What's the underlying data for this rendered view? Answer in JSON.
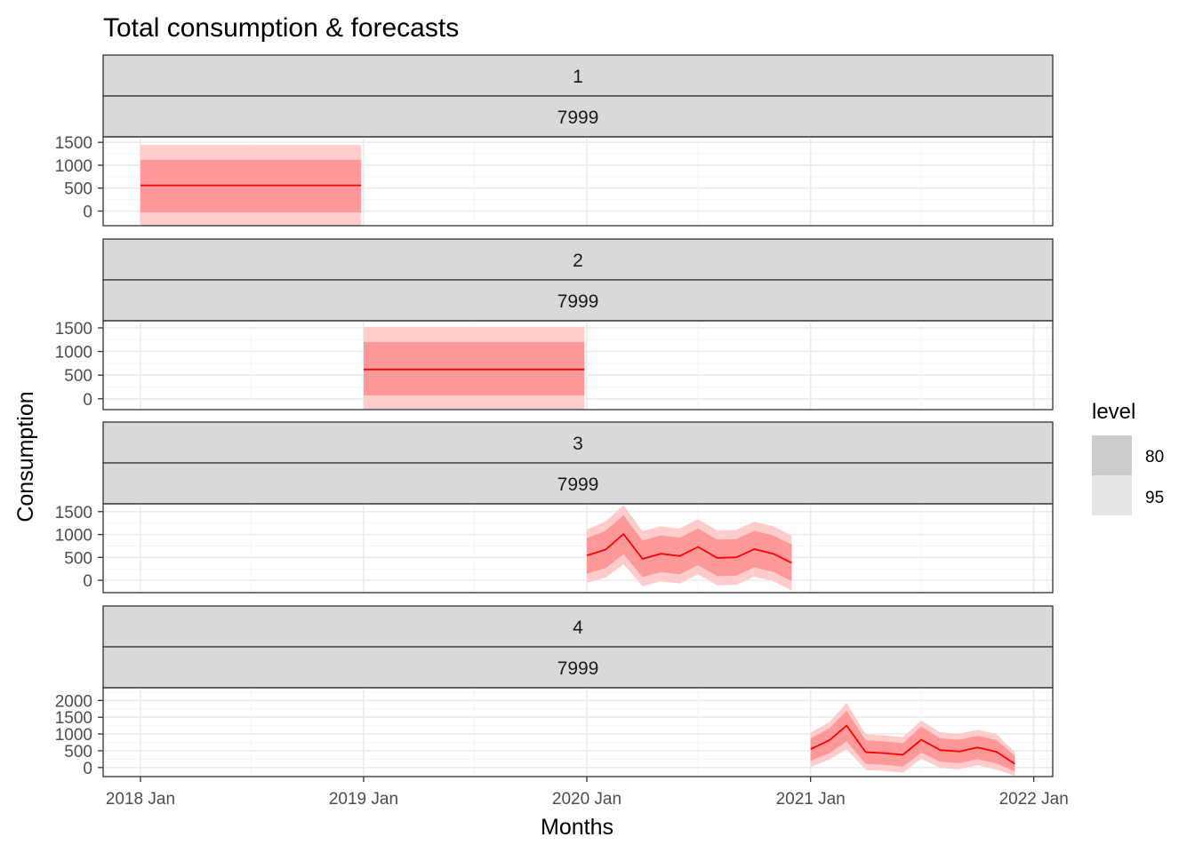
{
  "chart_data": {
    "type": "line",
    "title": "Total consumption & forecasts",
    "xlabel": "Months",
    "ylabel": "Consumption",
    "x_ticks": [
      "2018 Jan",
      "2019 Jan",
      "2020 Jan",
      "2021 Jan",
      "2022 Jan"
    ],
    "x_range": [
      "2017-11",
      "2022-02"
    ],
    "grid": true,
    "legend": {
      "title": "level",
      "position": "right",
      "entries": [
        {
          "label": "80",
          "color": "#cccccc"
        },
        {
          "label": "95",
          "color": "#e5e5e5"
        }
      ]
    },
    "colors": {
      "line": "#ff0000",
      "band80": "#ff9999",
      "band95": "#ffcccc",
      "strip_fill": "#d9d9d9",
      "grid_major": "#ebebeb",
      "grid_minor": "#f5f5f5",
      "panel_border": "#333333"
    },
    "panels": [
      {
        "strip1": "1",
        "strip2": "7999",
        "y_ticks": [
          0,
          500,
          1000,
          1500
        ],
        "ylim": [
          -320,
          1620
        ],
        "months": [
          "2018-01",
          "2018-02",
          "2018-03",
          "2018-04",
          "2018-05",
          "2018-06",
          "2018-07",
          "2018-08",
          "2018-09",
          "2018-10",
          "2018-11",
          "2018-12"
        ],
        "mean": [
          560,
          560,
          560,
          560,
          560,
          560,
          560,
          560,
          560,
          560,
          560,
          560
        ],
        "lo80": [
          -30,
          -30,
          -30,
          -30,
          -30,
          -30,
          -30,
          -30,
          -30,
          -30,
          -30,
          -30
        ],
        "hi80": [
          1120,
          1120,
          1120,
          1120,
          1120,
          1120,
          1120,
          1120,
          1120,
          1120,
          1120,
          1120
        ],
        "lo95": [
          -320,
          -320,
          -320,
          -320,
          -320,
          -320,
          -320,
          -320,
          -320,
          -320,
          -320,
          -320
        ],
        "hi95": [
          1440,
          1440,
          1440,
          1440,
          1440,
          1440,
          1440,
          1440,
          1440,
          1440,
          1440,
          1440
        ]
      },
      {
        "strip1": "2",
        "strip2": "7999",
        "y_ticks": [
          0,
          500,
          1000,
          1500
        ],
        "ylim": [
          -230,
          1650
        ],
        "months": [
          "2019-01",
          "2019-02",
          "2019-03",
          "2019-04",
          "2019-05",
          "2019-06",
          "2019-07",
          "2019-08",
          "2019-09",
          "2019-10",
          "2019-11",
          "2019-12"
        ],
        "mean": [
          620,
          620,
          620,
          620,
          620,
          620,
          620,
          620,
          620,
          620,
          620,
          620
        ],
        "lo80": [
          70,
          70,
          70,
          70,
          70,
          70,
          70,
          70,
          70,
          70,
          70,
          70
        ],
        "hi80": [
          1200,
          1200,
          1200,
          1200,
          1200,
          1200,
          1200,
          1200,
          1200,
          1200,
          1200,
          1200
        ],
        "lo95": [
          -230,
          -230,
          -230,
          -230,
          -230,
          -230,
          -230,
          -230,
          -230,
          -230,
          -230,
          -230
        ],
        "hi95": [
          1520,
          1520,
          1520,
          1520,
          1520,
          1520,
          1520,
          1520,
          1520,
          1520,
          1520,
          1520
        ]
      },
      {
        "strip1": "3",
        "strip2": "7999",
        "y_ticks": [
          0,
          500,
          1000,
          1500
        ],
        "ylim": [
          -270,
          1670
        ],
        "months": [
          "2020-01",
          "2020-02",
          "2020-03",
          "2020-04",
          "2020-05",
          "2020-06",
          "2020-07",
          "2020-08",
          "2020-09",
          "2020-10",
          "2020-11",
          "2020-12"
        ],
        "mean": [
          540,
          670,
          1010,
          470,
          580,
          530,
          730,
          490,
          500,
          680,
          580,
          380
        ],
        "lo80": [
          140,
          270,
          570,
          70,
          180,
          130,
          330,
          90,
          100,
          280,
          180,
          -20
        ],
        "hi80": [
          920,
          1080,
          1420,
          870,
          980,
          930,
          1130,
          890,
          900,
          1080,
          980,
          780
        ],
        "lo95": [
          -50,
          60,
          350,
          -130,
          -20,
          -70,
          130,
          -110,
          -100,
          80,
          -20,
          -220
        ],
        "hi95": [
          1110,
          1290,
          1640,
          1070,
          1180,
          1130,
          1330,
          1090,
          1100,
          1280,
          1180,
          980
        ]
      },
      {
        "strip1": "4",
        "strip2": "7999",
        "y_ticks": [
          0,
          500,
          1000,
          1500,
          2000
        ],
        "ylim": [
          -270,
          2380
        ],
        "months": [
          "2021-01",
          "2021-02",
          "2021-03",
          "2021-04",
          "2021-05",
          "2021-06",
          "2021-07",
          "2021-08",
          "2021-09",
          "2021-10",
          "2021-11",
          "2021-12"
        ],
        "mean": [
          550,
          820,
          1250,
          460,
          430,
          380,
          830,
          520,
          480,
          600,
          470,
          110
        ],
        "lo80": [
          200,
          430,
          780,
          110,
          80,
          30,
          440,
          170,
          130,
          250,
          120,
          -120
        ],
        "hi80": [
          870,
          1180,
          1690,
          810,
          780,
          730,
          1220,
          870,
          830,
          950,
          820,
          350
        ],
        "lo95": [
          20,
          240,
          550,
          -70,
          -100,
          -150,
          260,
          -10,
          -50,
          70,
          -60,
          -250
        ],
        "hi95": [
          1050,
          1360,
          1930,
          990,
          960,
          910,
          1400,
          1050,
          1010,
          1130,
          1000,
          460
        ]
      }
    ]
  }
}
